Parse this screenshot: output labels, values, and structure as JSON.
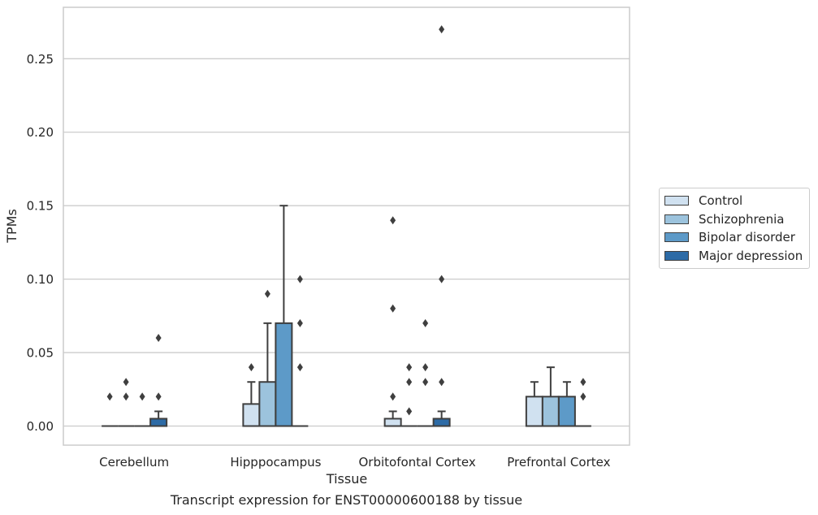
{
  "chart_data": {
    "type": "box",
    "xlabel": "Tissue",
    "ylabel": "TPMs",
    "caption": "Transcript expression for ENST00000600188 by tissue",
    "ylim": [
      -0.013,
      0.285
    ],
    "yticks": [
      0.0,
      0.05,
      0.1,
      0.15,
      0.2,
      0.25
    ],
    "ytick_labels": [
      "0.00",
      "0.05",
      "0.10",
      "0.15",
      "0.20",
      "0.25"
    ],
    "grid": "horizontal",
    "legend_position": "right",
    "categories": [
      "Cerebellum",
      "Hipppocampus",
      "Orbitofontal Cortex",
      "Prefrontal Cortex"
    ],
    "series": [
      {
        "name": "Control",
        "color": "#d0e1f0",
        "boxes": [
          {
            "q1": 0,
            "median": 0,
            "q3": 0,
            "whisker_low": 0,
            "whisker_high": 0,
            "outliers": [
              0.02
            ]
          },
          {
            "q1": 0,
            "median": 0,
            "q3": 0.015,
            "whisker_low": 0,
            "whisker_high": 0.03,
            "outliers": [
              0.04
            ]
          },
          {
            "q1": 0,
            "median": 0,
            "q3": 0.005,
            "whisker_low": 0,
            "whisker_high": 0.01,
            "outliers": [
              0.02,
              0.08,
              0.14
            ]
          },
          {
            "q1": 0,
            "median": 0,
            "q3": 0.02,
            "whisker_low": 0,
            "whisker_high": 0.03,
            "outliers": []
          }
        ]
      },
      {
        "name": "Schizophrenia",
        "color": "#9cc3dd",
        "boxes": [
          {
            "q1": 0,
            "median": 0,
            "q3": 0,
            "whisker_low": 0,
            "whisker_high": 0,
            "outliers": [
              0.02,
              0.03
            ]
          },
          {
            "q1": 0,
            "median": 0,
            "q3": 0.03,
            "whisker_low": 0,
            "whisker_high": 0.07,
            "outliers": [
              0.09
            ]
          },
          {
            "q1": 0,
            "median": 0,
            "q3": 0,
            "whisker_low": 0,
            "whisker_high": 0,
            "outliers": [
              0.01,
              0.03,
              0.04
            ]
          },
          {
            "q1": 0,
            "median": 0,
            "q3": 0.02,
            "whisker_low": 0,
            "whisker_high": 0.04,
            "outliers": []
          }
        ]
      },
      {
        "name": "Bipolar disorder",
        "color": "#5d9ac8",
        "boxes": [
          {
            "q1": 0,
            "median": 0,
            "q3": 0,
            "whisker_low": 0,
            "whisker_high": 0,
            "outliers": [
              0.02
            ]
          },
          {
            "q1": 0,
            "median": 0,
            "q3": 0.07,
            "whisker_low": 0,
            "whisker_high": 0.15,
            "outliers": []
          },
          {
            "q1": 0,
            "median": 0,
            "q3": 0,
            "whisker_low": 0,
            "whisker_high": 0,
            "outliers": [
              0.03,
              0.04,
              0.07
            ]
          },
          {
            "q1": 0,
            "median": 0,
            "q3": 0.02,
            "whisker_low": 0,
            "whisker_high": 0.03,
            "outliers": []
          }
        ]
      },
      {
        "name": "Major depression",
        "color": "#2d6ba6",
        "boxes": [
          {
            "q1": 0,
            "median": 0,
            "q3": 0.005,
            "whisker_low": 0,
            "whisker_high": 0.01,
            "outliers": [
              0.02,
              0.06
            ]
          },
          {
            "q1": 0,
            "median": 0,
            "q3": 0,
            "whisker_low": 0,
            "whisker_high": 0,
            "outliers": [
              0.04,
              0.07,
              0.1
            ]
          },
          {
            "q1": 0,
            "median": 0,
            "q3": 0.005,
            "whisker_low": 0,
            "whisker_high": 0.01,
            "outliers": [
              0.03,
              0.1,
              0.27
            ]
          },
          {
            "q1": 0,
            "median": 0,
            "q3": 0,
            "whisker_low": 0,
            "whisker_high": 0,
            "outliers": [
              0.02,
              0.03
            ]
          }
        ]
      }
    ]
  }
}
